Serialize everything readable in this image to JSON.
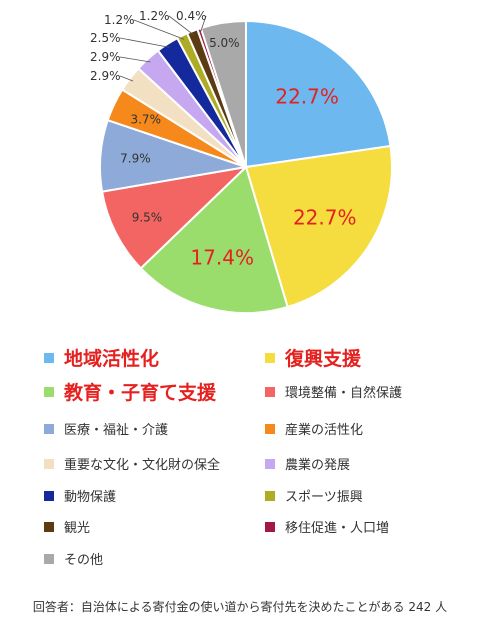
{
  "chart_data": {
    "type": "pie",
    "slices": [
      {
        "label": "地域活性化",
        "value": 22.7,
        "display": "22.7%",
        "color": "#6cb8ef"
      },
      {
        "label": "復興支援",
        "value": 22.7,
        "display": "22.7%",
        "color": "#f5dd3f"
      },
      {
        "label": "教育・子育て支援",
        "value": 17.4,
        "display": "17.4%",
        "color": "#9bdd6c"
      },
      {
        "label": "環境整備・自然保護",
        "value": 9.5,
        "display": "9.5%",
        "color": "#f26563"
      },
      {
        "label": "医療・福祉・介護",
        "value": 7.9,
        "display": "7.9%",
        "color": "#8eaad8"
      },
      {
        "label": "産業の活性化",
        "value": 3.7,
        "display": "3.7%",
        "color": "#f5891b"
      },
      {
        "label": "重要な文化・文化財の保全",
        "value": 2.9,
        "display": "2.9%",
        "color": "#f3dfc2"
      },
      {
        "label": "農業の発展",
        "value": 2.9,
        "display": "2.9%",
        "color": "#c6a8f0"
      },
      {
        "label": "動物保護",
        "value": 2.5,
        "display": "2.5%",
        "color": "#14299b"
      },
      {
        "label": "スポーツ振興",
        "value": 1.2,
        "display": "1.2%",
        "color": "#aeab24"
      },
      {
        "label": "観光",
        "value": 1.2,
        "display": "1.2%",
        "color": "#5c3a12"
      },
      {
        "label": "移住促進・人口増",
        "value": 0.4,
        "display": "0.4%",
        "color": "#a3174b"
      },
      {
        "label": "その他",
        "value": 5.0,
        "display": "5.0%",
        "color": "#a9a9a9"
      }
    ],
    "legend_placement": "bottom"
  },
  "note": "回答者：自治体による寄付金の使い道から寄付先を決めたことがある 242 人"
}
